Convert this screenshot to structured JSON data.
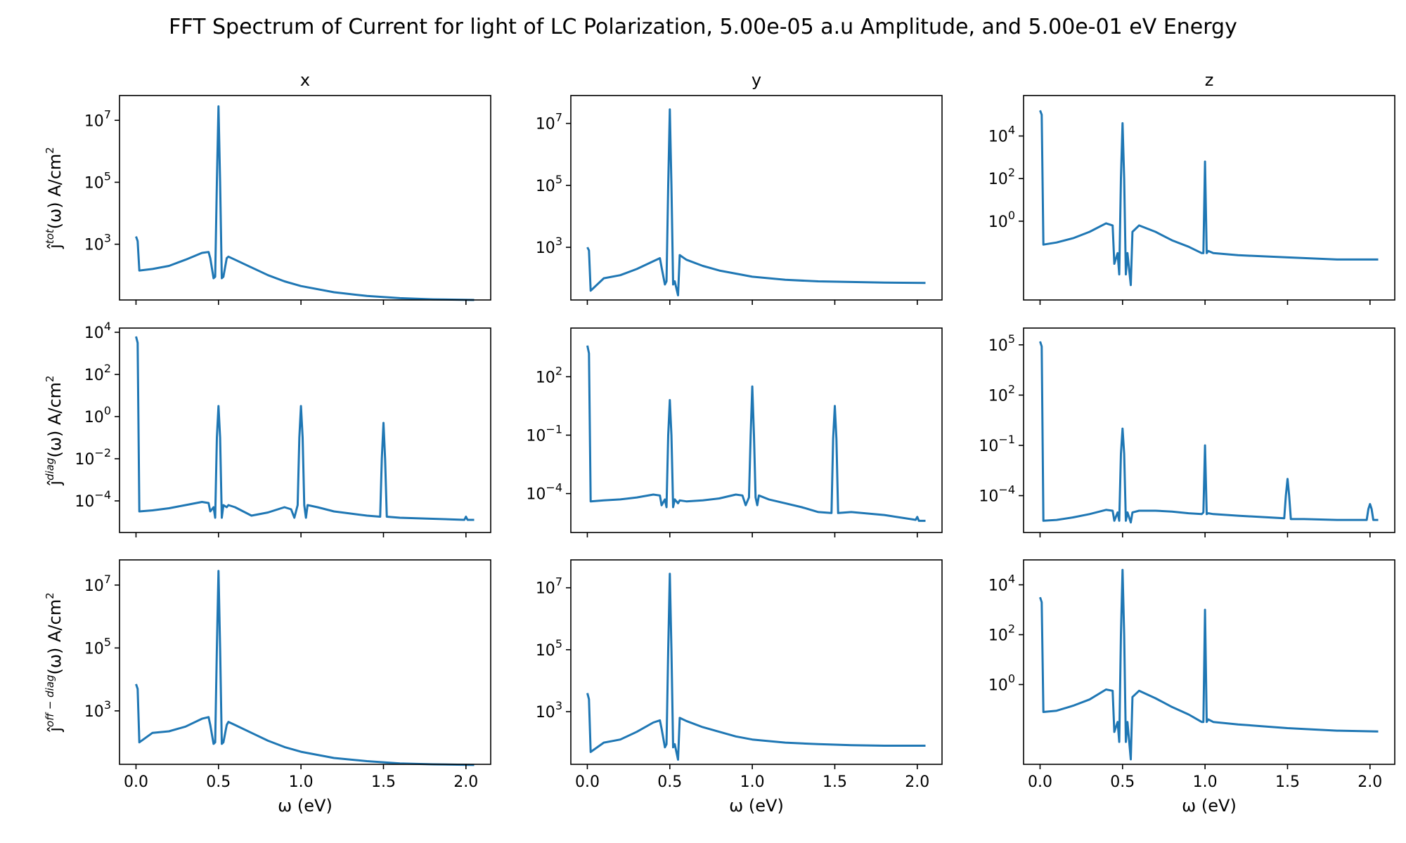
{
  "title": "FFT Spectrum of Current for light of LC Polarization, 5.00e-05 a.u Amplitude, and 5.00e-01 eV Energy",
  "columns": [
    "x",
    "y",
    "z"
  ],
  "row_labels": [
    {
      "base": "ĵ",
      "sup": "tot",
      "rest": "(ω) A/cm",
      "sq": "2"
    },
    {
      "base": "ĵ",
      "sup": "diag",
      "rest": "(ω) A/cm",
      "sq": "2"
    },
    {
      "base": "ĵ",
      "sup": "off − diag",
      "rest": "(ω) A/cm",
      "sq": "2"
    }
  ],
  "xlabel": "ω (eV)",
  "x_ticks": [
    "0.0",
    "0.5",
    "1.0",
    "1.5",
    "2.0"
  ],
  "colors": {
    "line": "#1f77b4",
    "axes": "#000000"
  },
  "chart_data": [
    {
      "type": "line",
      "row": 0,
      "col": 0,
      "yscale": "log",
      "xlim": [
        -0.1,
        2.15
      ],
      "ylim_log10": [
        1.2,
        7.8
      ],
      "y_ticks": [
        {
          "e": 3,
          "label": "3"
        },
        {
          "e": 5,
          "label": "5"
        },
        {
          "e": 7,
          "label": "7"
        }
      ],
      "x": [
        0,
        0.01,
        0.02,
        0.1,
        0.2,
        0.3,
        0.4,
        0.44,
        0.45,
        0.47,
        0.48,
        0.49,
        0.5,
        0.51,
        0.52,
        0.53,
        0.55,
        0.56,
        0.6,
        0.7,
        0.8,
        0.9,
        1.0,
        1.2,
        1.4,
        1.6,
        1.8,
        2.05
      ],
      "y": [
        3.25,
        3.1,
        2.15,
        2.2,
        2.3,
        2.5,
        2.72,
        2.75,
        2.55,
        1.9,
        1.95,
        5.0,
        7.45,
        5.0,
        1.9,
        1.95,
        2.55,
        2.6,
        2.5,
        2.25,
        2.0,
        1.8,
        1.65,
        1.45,
        1.33,
        1.26,
        1.22,
        1.2
      ]
    },
    {
      "type": "line",
      "row": 0,
      "col": 1,
      "yscale": "log",
      "xlim": [
        -0.1,
        2.15
      ],
      "ylim_log10": [
        1.3,
        7.9
      ],
      "y_ticks": [
        {
          "e": 3,
          "label": "3"
        },
        {
          "e": 5,
          "label": "5"
        },
        {
          "e": 7,
          "label": "7"
        }
      ],
      "x": [
        0,
        0.01,
        0.02,
        0.1,
        0.2,
        0.3,
        0.4,
        0.44,
        0.45,
        0.47,
        0.48,
        0.49,
        0.5,
        0.51,
        0.52,
        0.53,
        0.55,
        0.56,
        0.6,
        0.7,
        0.8,
        0.9,
        1.0,
        1.2,
        1.4,
        1.6,
        1.8,
        2.05
      ],
      "y": [
        3.0,
        2.9,
        1.6,
        2.0,
        2.1,
        2.3,
        2.55,
        2.65,
        2.35,
        1.8,
        1.9,
        5.0,
        7.45,
        5.0,
        1.8,
        1.9,
        1.45,
        2.75,
        2.6,
        2.4,
        2.25,
        2.15,
        2.05,
        1.95,
        1.9,
        1.88,
        1.86,
        1.85
      ]
    },
    {
      "type": "line",
      "row": 0,
      "col": 2,
      "yscale": "log",
      "xlim": [
        -0.1,
        2.15
      ],
      "ylim_log10": [
        -3.7,
        5.9
      ],
      "y_ticks": [
        {
          "e": 0,
          "label": "0"
        },
        {
          "e": 2,
          "label": "2"
        },
        {
          "e": 4,
          "label": "4"
        }
      ],
      "x": [
        0,
        0.01,
        0.02,
        0.1,
        0.2,
        0.3,
        0.4,
        0.44,
        0.45,
        0.47,
        0.48,
        0.49,
        0.5,
        0.51,
        0.52,
        0.53,
        0.55,
        0.56,
        0.6,
        0.7,
        0.8,
        0.9,
        0.98,
        0.99,
        1.0,
        1.01,
        1.02,
        1.05,
        1.2,
        1.5,
        1.8,
        2.05
      ],
      "y": [
        5.2,
        5.0,
        -1.1,
        -1.0,
        -0.8,
        -0.5,
        -0.1,
        -0.2,
        -2.0,
        -1.5,
        -2.5,
        2.0,
        4.6,
        2.0,
        -2.5,
        -1.5,
        -3.0,
        -0.5,
        -0.2,
        -0.5,
        -0.9,
        -1.2,
        -1.5,
        -1.5,
        2.8,
        -1.5,
        -1.4,
        -1.5,
        -1.6,
        -1.7,
        -1.8,
        -1.8
      ]
    },
    {
      "type": "line",
      "row": 1,
      "col": 0,
      "yscale": "log",
      "xlim": [
        -0.1,
        2.15
      ],
      "ylim_log10": [
        -5.5,
        4.2
      ],
      "y_ticks": [
        {
          "e": -4,
          "label": "−4"
        },
        {
          "e": -2,
          "label": "−2"
        },
        {
          "e": 0,
          "label": "0"
        },
        {
          "e": 2,
          "label": "2"
        },
        {
          "e": 4,
          "label": "4"
        }
      ],
      "x": [
        0,
        0.01,
        0.02,
        0.1,
        0.2,
        0.3,
        0.4,
        0.44,
        0.45,
        0.47,
        0.48,
        0.49,
        0.5,
        0.51,
        0.52,
        0.53,
        0.55,
        0.56,
        0.6,
        0.7,
        0.8,
        0.9,
        0.94,
        0.96,
        0.98,
        0.99,
        1.0,
        1.01,
        1.02,
        1.03,
        1.04,
        1.1,
        1.2,
        1.3,
        1.4,
        1.48,
        1.49,
        1.5,
        1.51,
        1.52,
        1.6,
        1.8,
        1.99,
        2.0,
        2.01,
        2.05
      ],
      "y": [
        3.8,
        3.5,
        -4.5,
        -4.45,
        -4.35,
        -4.2,
        -4.05,
        -4.1,
        -4.5,
        -4.3,
        -4.8,
        -1.0,
        0.5,
        -1.0,
        -4.8,
        -4.2,
        -4.3,
        -4.2,
        -4.3,
        -4.7,
        -4.55,
        -4.3,
        -4.4,
        -4.8,
        -4.2,
        -1.0,
        0.5,
        -1.0,
        -4.2,
        -4.8,
        -4.2,
        -4.3,
        -4.5,
        -4.6,
        -4.7,
        -4.75,
        -2.0,
        -0.3,
        -2.0,
        -4.75,
        -4.8,
        -4.85,
        -4.9,
        -4.75,
        -4.9,
        -4.9
      ]
    },
    {
      "type": "line",
      "row": 1,
      "col": 1,
      "yscale": "log",
      "xlim": [
        -0.1,
        2.15
      ],
      "ylim_log10": [
        -6.0,
        4.5
      ],
      "y_ticks": [
        {
          "e": -4,
          "label": "−4"
        },
        {
          "e": -1,
          "label": "−1"
        },
        {
          "e": 2,
          "label": "2"
        }
      ],
      "x": [
        0,
        0.01,
        0.02,
        0.1,
        0.2,
        0.3,
        0.4,
        0.44,
        0.45,
        0.47,
        0.48,
        0.49,
        0.5,
        0.51,
        0.52,
        0.53,
        0.55,
        0.56,
        0.6,
        0.7,
        0.8,
        0.9,
        0.94,
        0.96,
        0.98,
        0.99,
        1.0,
        1.01,
        1.02,
        1.03,
        1.04,
        1.1,
        1.2,
        1.3,
        1.4,
        1.48,
        1.49,
        1.5,
        1.51,
        1.52,
        1.6,
        1.8,
        1.99,
        2.0,
        2.01,
        2.05
      ],
      "y": [
        3.6,
        3.2,
        -4.4,
        -4.35,
        -4.3,
        -4.2,
        -4.05,
        -4.1,
        -4.6,
        -4.3,
        -4.7,
        -1.0,
        0.8,
        -1.0,
        -4.7,
        -4.3,
        -4.5,
        -4.35,
        -4.4,
        -4.35,
        -4.25,
        -4.05,
        -4.1,
        -4.6,
        -4.2,
        -1.0,
        1.5,
        -1.0,
        -4.2,
        -4.6,
        -4.1,
        -4.3,
        -4.5,
        -4.7,
        -4.95,
        -5.0,
        -1.2,
        0.5,
        -1.2,
        -5.0,
        -4.95,
        -5.1,
        -5.35,
        -5.2,
        -5.4,
        -5.4
      ]
    },
    {
      "type": "line",
      "row": 1,
      "col": 2,
      "yscale": "log",
      "xlim": [
        -0.1,
        2.15
      ],
      "ylim_log10": [
        -6.2,
        6.0
      ],
      "y_ticks": [
        {
          "e": -4,
          "label": "−4"
        },
        {
          "e": -1,
          "label": "−1"
        },
        {
          "e": 2,
          "label": "2"
        },
        {
          "e": 5,
          "label": "5"
        }
      ],
      "x": [
        0,
        0.01,
        0.02,
        0.1,
        0.2,
        0.3,
        0.4,
        0.44,
        0.45,
        0.47,
        0.48,
        0.49,
        0.5,
        0.51,
        0.52,
        0.53,
        0.55,
        0.56,
        0.6,
        0.7,
        0.8,
        0.9,
        0.98,
        0.99,
        1.0,
        1.01,
        1.02,
        1.05,
        1.2,
        1.48,
        1.49,
        1.5,
        1.51,
        1.52,
        1.6,
        1.8,
        1.98,
        1.99,
        2.0,
        2.01,
        2.02,
        2.05
      ],
      "y": [
        5.2,
        4.9,
        -5.5,
        -5.45,
        -5.3,
        -5.1,
        -4.85,
        -4.9,
        -5.5,
        -5.0,
        -5.5,
        -1.5,
        0.0,
        -1.5,
        -5.5,
        -5.0,
        -5.6,
        -5.0,
        -4.9,
        -4.9,
        -4.95,
        -5.05,
        -5.1,
        -5.0,
        -1.0,
        -5.1,
        -5.05,
        -5.1,
        -5.2,
        -5.35,
        -4.0,
        -3.0,
        -4.0,
        -5.4,
        -5.4,
        -5.45,
        -5.45,
        -4.8,
        -4.5,
        -4.8,
        -5.45,
        -5.45
      ]
    },
    {
      "type": "line",
      "row": 2,
      "col": 0,
      "yscale": "log",
      "xlim": [
        -0.1,
        2.15
      ],
      "ylim_log10": [
        1.3,
        7.8
      ],
      "y_ticks": [
        {
          "e": 3,
          "label": "3"
        },
        {
          "e": 5,
          "label": "5"
        },
        {
          "e": 7,
          "label": "7"
        }
      ],
      "x": [
        0,
        0.01,
        0.02,
        0.1,
        0.2,
        0.3,
        0.4,
        0.44,
        0.45,
        0.47,
        0.48,
        0.49,
        0.5,
        0.51,
        0.52,
        0.53,
        0.55,
        0.56,
        0.6,
        0.7,
        0.8,
        0.9,
        1.0,
        1.2,
        1.4,
        1.6,
        1.8,
        2.05
      ],
      "y": [
        3.85,
        3.7,
        2.0,
        2.3,
        2.35,
        2.5,
        2.75,
        2.8,
        2.55,
        1.95,
        2.0,
        5.0,
        7.45,
        5.0,
        1.95,
        2.0,
        2.55,
        2.65,
        2.55,
        2.3,
        2.05,
        1.85,
        1.7,
        1.5,
        1.4,
        1.33,
        1.3,
        1.28
      ]
    },
    {
      "type": "line",
      "row": 2,
      "col": 1,
      "yscale": "log",
      "xlim": [
        -0.1,
        2.15
      ],
      "ylim_log10": [
        1.3,
        7.9
      ],
      "y_ticks": [
        {
          "e": 3,
          "label": "3"
        },
        {
          "e": 5,
          "label": "5"
        },
        {
          "e": 7,
          "label": "7"
        }
      ],
      "x": [
        0,
        0.01,
        0.02,
        0.1,
        0.2,
        0.3,
        0.4,
        0.44,
        0.45,
        0.47,
        0.48,
        0.49,
        0.5,
        0.51,
        0.52,
        0.53,
        0.55,
        0.56,
        0.6,
        0.7,
        0.8,
        0.9,
        1.0,
        1.2,
        1.4,
        1.6,
        1.8,
        2.05
      ],
      "y": [
        3.6,
        3.4,
        1.7,
        2.0,
        2.1,
        2.35,
        2.65,
        2.72,
        2.45,
        1.85,
        1.95,
        5.0,
        7.45,
        5.0,
        1.85,
        1.95,
        1.45,
        2.8,
        2.7,
        2.5,
        2.35,
        2.2,
        2.1,
        2.0,
        1.95,
        1.92,
        1.9,
        1.9
      ]
    },
    {
      "type": "line",
      "row": 2,
      "col": 2,
      "yscale": "log",
      "xlim": [
        -0.1,
        2.15
      ],
      "ylim_log10": [
        -3.2,
        5.0
      ],
      "y_ticks": [
        {
          "e": 0,
          "label": "0"
        },
        {
          "e": 2,
          "label": "2"
        },
        {
          "e": 4,
          "label": "4"
        }
      ],
      "x": [
        0,
        0.01,
        0.02,
        0.1,
        0.2,
        0.3,
        0.4,
        0.44,
        0.45,
        0.47,
        0.48,
        0.49,
        0.5,
        0.51,
        0.52,
        0.53,
        0.55,
        0.56,
        0.6,
        0.7,
        0.8,
        0.9,
        0.98,
        0.99,
        1.0,
        1.01,
        1.02,
        1.05,
        1.2,
        1.5,
        1.8,
        2.05
      ],
      "y": [
        3.5,
        3.3,
        -1.1,
        -1.05,
        -0.85,
        -0.6,
        -0.2,
        -0.25,
        -1.9,
        -1.5,
        -2.3,
        2.0,
        4.6,
        2.0,
        -2.3,
        -1.5,
        -3.0,
        -0.5,
        -0.25,
        -0.55,
        -0.9,
        -1.2,
        -1.5,
        -1.5,
        3.0,
        -1.5,
        -1.4,
        -1.5,
        -1.6,
        -1.75,
        -1.85,
        -1.88
      ]
    }
  ]
}
